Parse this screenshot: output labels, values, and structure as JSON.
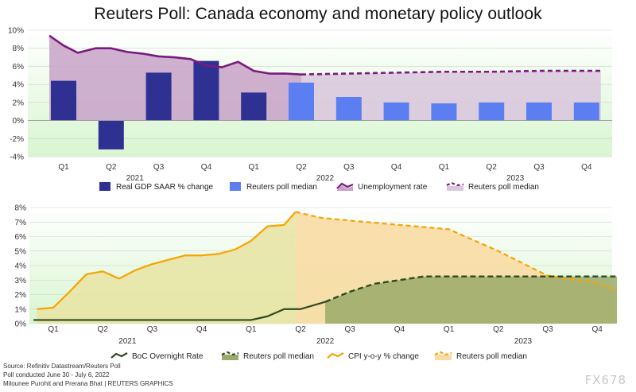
{
  "title": "Reuters Poll: Canada economy and monetary policy outlook",
  "colors": {
    "gdp": "#2e3192",
    "gdp_poll": "#5b7ff0",
    "unemp": "#7a1a7e",
    "unemp_fill": "#c8a2c8",
    "boc": "#2f4a1f",
    "boc_fill": "#9aab6a",
    "cpi": "#f7a400",
    "cpi_fill": "#f8dca4",
    "bg_green": "#d8f5d0"
  },
  "chart_data": [
    {
      "type": "bar",
      "name": "top",
      "categories": [
        "Q1",
        "Q2",
        "Q3",
        "Q4",
        "Q1",
        "Q2",
        "Q3",
        "Q4",
        "Q1",
        "Q2",
        "Q3",
        "Q4"
      ],
      "years": [
        {
          "label": "2021",
          "span": [
            0,
            3
          ]
        },
        {
          "label": "2022",
          "span": [
            4,
            7
          ]
        },
        {
          "label": "2023",
          "span": [
            8,
            11
          ]
        }
      ],
      "ylim": [
        -4,
        10
      ],
      "yticks": [
        "10%",
        "8%",
        "6%",
        "4%",
        "2%",
        "0%",
        "-2%",
        "-4%"
      ],
      "ytick_values": [
        10,
        8,
        6,
        4,
        2,
        0,
        -2,
        -4
      ],
      "series": [
        {
          "name": "Real GDP SAAR % change",
          "kind": "bar",
          "values": [
            4.4,
            -3.2,
            5.3,
            6.6,
            3.1,
            null,
            null,
            null,
            null,
            null,
            null,
            null
          ]
        },
        {
          "name": "Reuters poll median",
          "kind": "bar",
          "values": [
            null,
            null,
            null,
            null,
            null,
            4.2,
            2.6,
            2.0,
            1.9,
            2.0,
            2.0,
            2.0
          ]
        },
        {
          "name": "Unemployment rate",
          "kind": "area-line",
          "x": [
            -0.3,
            0,
            0.3,
            0.67,
            1,
            1.33,
            1.67,
            2,
            2.33,
            2.67,
            3,
            3.33,
            3.67,
            4,
            4.33,
            4.67,
            5
          ],
          "values": [
            9.4,
            8.3,
            7.5,
            8.0,
            8.0,
            7.6,
            7.4,
            7.1,
            7.0,
            6.8,
            6.1,
            5.9,
            6.5,
            5.5,
            5.2,
            5.2,
            5.1
          ]
        },
        {
          "name": "Reuters poll median",
          "kind": "area-dashed",
          "x": [
            5,
            6,
            7,
            8,
            9,
            10,
            11,
            11.3
          ],
          "values": [
            5.1,
            5.2,
            5.3,
            5.4,
            5.4,
            5.5,
            5.5,
            5.5
          ]
        }
      ],
      "legend": [
        "Real GDP SAAR % change",
        "Reuters poll median",
        "Unemployment rate",
        "Reuters poll median"
      ]
    },
    {
      "type": "line",
      "name": "bottom",
      "categories": [
        "Q1",
        "Q2",
        "Q3",
        "Q4",
        "Q1",
        "Q2",
        "Q3",
        "Q4",
        "Q1",
        "Q2",
        "Q3",
        "Q4"
      ],
      "years": [
        {
          "label": "2021",
          "span": [
            0,
            3
          ]
        },
        {
          "label": "2022",
          "span": [
            4,
            7
          ]
        },
        {
          "label": "2023",
          "span": [
            8,
            11
          ]
        }
      ],
      "ylim": [
        0,
        8
      ],
      "yticks": [
        "8%",
        "7%",
        "6%",
        "5%",
        "4%",
        "3%",
        "2%",
        "1%",
        "0%"
      ],
      "ytick_values": [
        8,
        7,
        6,
        5,
        4,
        3,
        2,
        1,
        0
      ],
      "series": [
        {
          "name": "BoC Overnight Rate",
          "kind": "step-line",
          "x": [
            -0.4,
            0,
            1,
            2,
            3,
            4,
            4.33,
            4.67,
            5,
            5.5
          ],
          "values": [
            0.25,
            0.25,
            0.25,
            0.25,
            0.25,
            0.25,
            0.5,
            1.0,
            1.0,
            1.5
          ]
        },
        {
          "name": "Reuters poll median",
          "kind": "area-dashed",
          "x": [
            5.5,
            6,
            6.5,
            7,
            7.5,
            8,
            9,
            10,
            11,
            11.4
          ],
          "values": [
            1.5,
            2.2,
            2.75,
            3.0,
            3.25,
            3.25,
            3.25,
            3.25,
            3.25,
            3.25
          ]
        },
        {
          "name": "CPI y-o-y % change",
          "kind": "area-line",
          "x": [
            -0.33,
            0,
            0.33,
            0.67,
            1,
            1.33,
            1.67,
            2,
            2.33,
            2.67,
            3,
            3.33,
            3.67,
            4,
            4.33,
            4.67,
            4.9
          ],
          "values": [
            1.0,
            1.1,
            2.2,
            3.4,
            3.6,
            3.1,
            3.7,
            4.1,
            4.4,
            4.7,
            4.7,
            4.8,
            5.1,
            5.7,
            6.7,
            6.8,
            7.7
          ]
        },
        {
          "name": "Reuters poll median",
          "kind": "area-dashed",
          "x": [
            4.9,
            5.4,
            6,
            7,
            8,
            9,
            10,
            11,
            11.4
          ],
          "values": [
            7.7,
            7.3,
            7.1,
            6.8,
            6.5,
            5.0,
            3.3,
            2.8,
            2.3
          ]
        }
      ],
      "legend": [
        "BoC Overnight Rate",
        "Reuters poll median",
        "CPI y-o-y % change",
        "Reuters poll median"
      ]
    }
  ],
  "footer": {
    "line1": "Source: Refinitiv Datastream/Reuters Poll",
    "line2": "Poll conducted June 30 - July 6, 2022",
    "line3": "Milounee Purohit and Prerana Bhat | REUTERS GRAPHICS"
  },
  "watermark": "FX678"
}
